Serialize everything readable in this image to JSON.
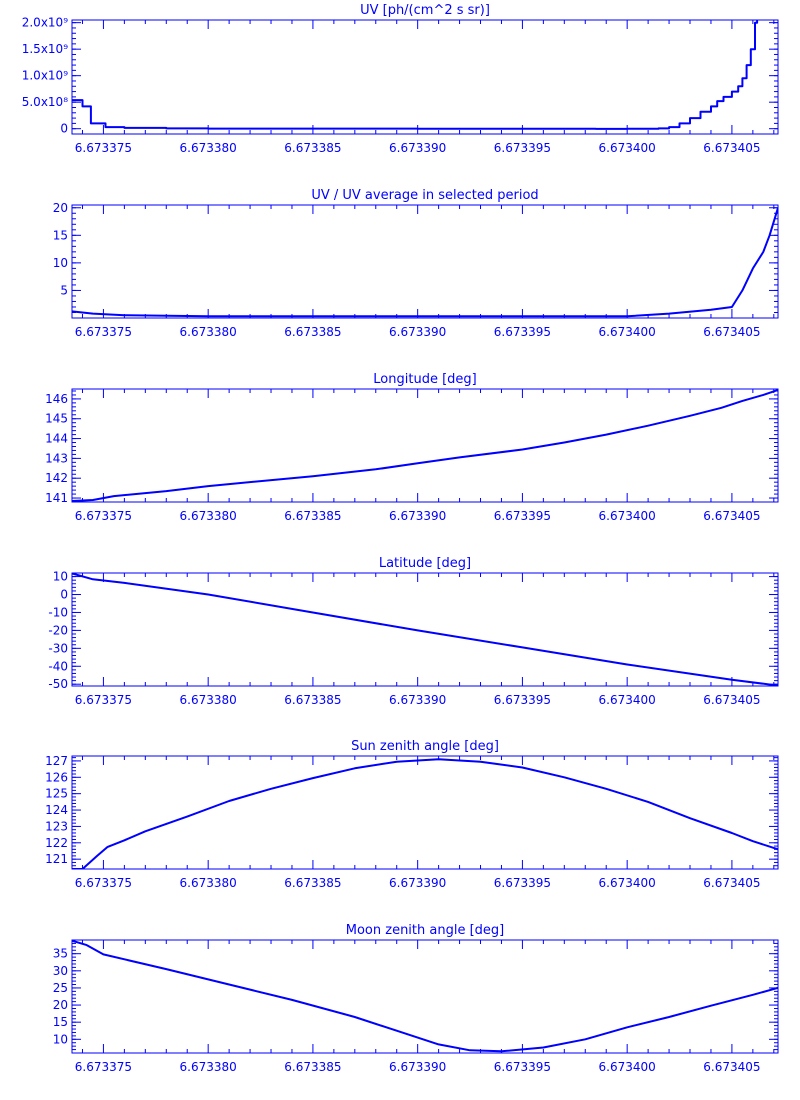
{
  "colors": {
    "ink": "#0000ff",
    "background": "#ffffff"
  },
  "x_ticks": [
    "6.673375",
    "6.673380",
    "6.673385",
    "6.673390",
    "6.673395",
    "6.673400",
    "6.673405"
  ],
  "chart_data": [
    {
      "type": "line",
      "title": "UV [ph/(cm^2 s sr)]",
      "xlim": [
        6.6733735,
        6.6734072
      ],
      "ylim": [
        -100000000.0,
        2050000000.0
      ],
      "yticks": [
        {
          "value": 0,
          "label": "0"
        },
        {
          "value": 500000000.0,
          "label": "5.0x10⁸"
        },
        {
          "value": 1000000000.0,
          "label": "1.0x10⁹"
        },
        {
          "value": 1500000000.0,
          "label": "1.5x10⁹"
        },
        {
          "value": 2000000000.0,
          "label": "2.0x10⁹"
        }
      ],
      "series": [
        {
          "step": true,
          "points": [
            [
              6.6733735,
              540000000.0
            ],
            [
              6.673374,
              420000000.0
            ],
            [
              6.6733744,
              100000000.0
            ],
            [
              6.6733751,
              30000000.0
            ],
            [
              6.673376,
              15000000.0
            ],
            [
              6.673378,
              5000000.0
            ],
            [
              6.67338,
              2000000.0
            ],
            [
              6.67339,
              0
            ],
            [
              6.673397,
              0
            ],
            [
              6.6733985,
              -3000000.0
            ],
            [
              6.6734,
              0
            ],
            [
              6.6734015,
              5000000.0
            ],
            [
              6.673402,
              30000000.0
            ],
            [
              6.6734025,
              100000000.0
            ],
            [
              6.673403,
              200000000.0
            ],
            [
              6.6734035,
              320000000.0
            ],
            [
              6.673404,
              420000000.0
            ],
            [
              6.6734043,
              520000000.0
            ],
            [
              6.6734046,
              600000000.0
            ],
            [
              6.673405,
              700000000.0
            ],
            [
              6.6734053,
              800000000.0
            ],
            [
              6.6734055,
              950000000.0
            ],
            [
              6.6734057,
              1200000000.0
            ],
            [
              6.6734059,
              1500000000.0
            ],
            [
              6.6734061,
              2000000000.0
            ],
            [
              6.6734062,
              2050000000.0
            ]
          ]
        }
      ]
    },
    {
      "type": "line",
      "title": "UV / UV average in selected period",
      "xlim": [
        6.6733735,
        6.6734072
      ],
      "ylim": [
        0,
        20.5
      ],
      "yticks": [
        {
          "value": 5,
          "label": "5"
        },
        {
          "value": 10,
          "label": "10"
        },
        {
          "value": 15,
          "label": "15"
        },
        {
          "value": 20,
          "label": "20"
        }
      ],
      "series": [
        {
          "points": [
            [
              6.6733735,
              1.2
            ],
            [
              6.6733745,
              0.8
            ],
            [
              6.673376,
              0.5
            ],
            [
              6.67338,
              0.3
            ],
            [
              6.67339,
              0.3
            ],
            [
              6.6734,
              0.3
            ],
            [
              6.673402,
              0.8
            ],
            [
              6.673404,
              1.5
            ],
            [
              6.673405,
              2.0
            ],
            [
              6.6734055,
              5.0
            ],
            [
              6.673406,
              9.0
            ],
            [
              6.6734065,
              12.0
            ],
            [
              6.6734068,
              15.0
            ],
            [
              6.6734072,
              20.0
            ]
          ]
        }
      ]
    },
    {
      "type": "line",
      "title": "Longitude [deg]",
      "xlim": [
        6.6733735,
        6.6734072
      ],
      "ylim": [
        140.8,
        146.5
      ],
      "yticks": [
        {
          "value": 141,
          "label": "141"
        },
        {
          "value": 142,
          "label": "142"
        },
        {
          "value": 143,
          "label": "143"
        },
        {
          "value": 144,
          "label": "144"
        },
        {
          "value": 145,
          "label": "145"
        },
        {
          "value": 146,
          "label": "146"
        }
      ],
      "series": [
        {
          "points": [
            [
              6.6733735,
              140.85
            ],
            [
              6.6733745,
              140.9
            ],
            [
              6.6733755,
              141.1
            ],
            [
              6.673378,
              141.35
            ],
            [
              6.67338,
              141.6
            ],
            [
              6.673385,
              142.1
            ],
            [
              6.673388,
              142.45
            ],
            [
              6.67339,
              142.75
            ],
            [
              6.673392,
              143.05
            ],
            [
              6.673395,
              143.45
            ],
            [
              6.673397,
              143.8
            ],
            [
              6.673399,
              144.2
            ],
            [
              6.673401,
              144.65
            ],
            [
              6.673403,
              145.15
            ],
            [
              6.6734045,
              145.55
            ],
            [
              6.6734055,
              145.9
            ],
            [
              6.6734065,
              146.2
            ],
            [
              6.6734072,
              146.45
            ]
          ]
        }
      ]
    },
    {
      "type": "line",
      "title": "Latitude [deg]",
      "xlim": [
        6.6733735,
        6.6734072
      ],
      "ylim": [
        -51,
        12
      ],
      "yticks": [
        {
          "value": 10,
          "label": "10"
        },
        {
          "value": 0,
          "label": "0"
        },
        {
          "value": -10,
          "label": "-10"
        },
        {
          "value": -20,
          "label": "-20"
        },
        {
          "value": -30,
          "label": "-30"
        },
        {
          "value": -40,
          "label": "-40"
        },
        {
          "value": -50,
          "label": "-50"
        }
      ],
      "series": [
        {
          "points": [
            [
              6.6733735,
              11.8
            ],
            [
              6.6733745,
              8.5
            ],
            [
              6.673376,
              6.5
            ],
            [
              6.67338,
              0.0
            ],
            [
              6.673385,
              -10.0
            ],
            [
              6.67339,
              -20.0
            ],
            [
              6.673395,
              -29.5
            ],
            [
              6.6734,
              -39.0
            ],
            [
              6.673405,
              -47.5
            ],
            [
              6.6734072,
              -50.8
            ]
          ]
        }
      ]
    },
    {
      "type": "line",
      "title": "Sun zenith angle [deg]",
      "xlim": [
        6.6733735,
        6.6734072
      ],
      "ylim": [
        120.4,
        127.3
      ],
      "yticks": [
        {
          "value": 121,
          "label": "121"
        },
        {
          "value": 122,
          "label": "122"
        },
        {
          "value": 123,
          "label": "123"
        },
        {
          "value": 124,
          "label": "124"
        },
        {
          "value": 125,
          "label": "125"
        },
        {
          "value": 126,
          "label": "126"
        },
        {
          "value": 127,
          "label": "127"
        }
      ],
      "series": [
        {
          "points": [
            [
              6.6733735,
              120.4
            ],
            [
              6.673374,
              120.4
            ],
            [
              6.6733747,
              121.2
            ],
            [
              6.6733752,
              121.75
            ],
            [
              6.673376,
              122.15
            ],
            [
              6.673377,
              122.7
            ],
            [
              6.673379,
              123.6
            ],
            [
              6.673381,
              124.55
            ],
            [
              6.673383,
              125.3
            ],
            [
              6.673385,
              125.95
            ],
            [
              6.673387,
              126.55
            ],
            [
              6.673389,
              126.95
            ],
            [
              6.673391,
              127.1
            ],
            [
              6.673393,
              126.95
            ],
            [
              6.673395,
              126.6
            ],
            [
              6.673397,
              126.0
            ],
            [
              6.673399,
              125.3
            ],
            [
              6.673401,
              124.5
            ],
            [
              6.673403,
              123.5
            ],
            [
              6.673405,
              122.6
            ],
            [
              6.673406,
              122.1
            ],
            [
              6.6734072,
              121.6
            ]
          ]
        }
      ]
    },
    {
      "type": "line",
      "title": "Moon zenith angle [deg]",
      "xlim": [
        6.6733735,
        6.6734072
      ],
      "ylim": [
        6,
        39
      ],
      "yticks": [
        {
          "value": 10,
          "label": "10"
        },
        {
          "value": 15,
          "label": "15"
        },
        {
          "value": 20,
          "label": "20"
        },
        {
          "value": 25,
          "label": "25"
        },
        {
          "value": 30,
          "label": "30"
        },
        {
          "value": 35,
          "label": "35"
        }
      ],
      "series": [
        {
          "points": [
            [
              6.6733735,
              38.8
            ],
            [
              6.6733742,
              37.5
            ],
            [
              6.673375,
              34.8
            ],
            [
              6.673378,
              30.5
            ],
            [
              6.673381,
              26.0
            ],
            [
              6.673384,
              21.5
            ],
            [
              6.673387,
              16.5
            ],
            [
              6.673389,
              12.5
            ],
            [
              6.673391,
              8.5
            ],
            [
              6.6733925,
              6.8
            ],
            [
              6.673394,
              6.5
            ],
            [
              6.673396,
              7.6
            ],
            [
              6.673398,
              10.0
            ],
            [
              6.6734,
              13.5
            ],
            [
              6.673402,
              16.5
            ],
            [
              6.673404,
              19.8
            ],
            [
              6.673406,
              23.0
            ],
            [
              6.6734072,
              25.0
            ]
          ]
        }
      ]
    }
  ]
}
